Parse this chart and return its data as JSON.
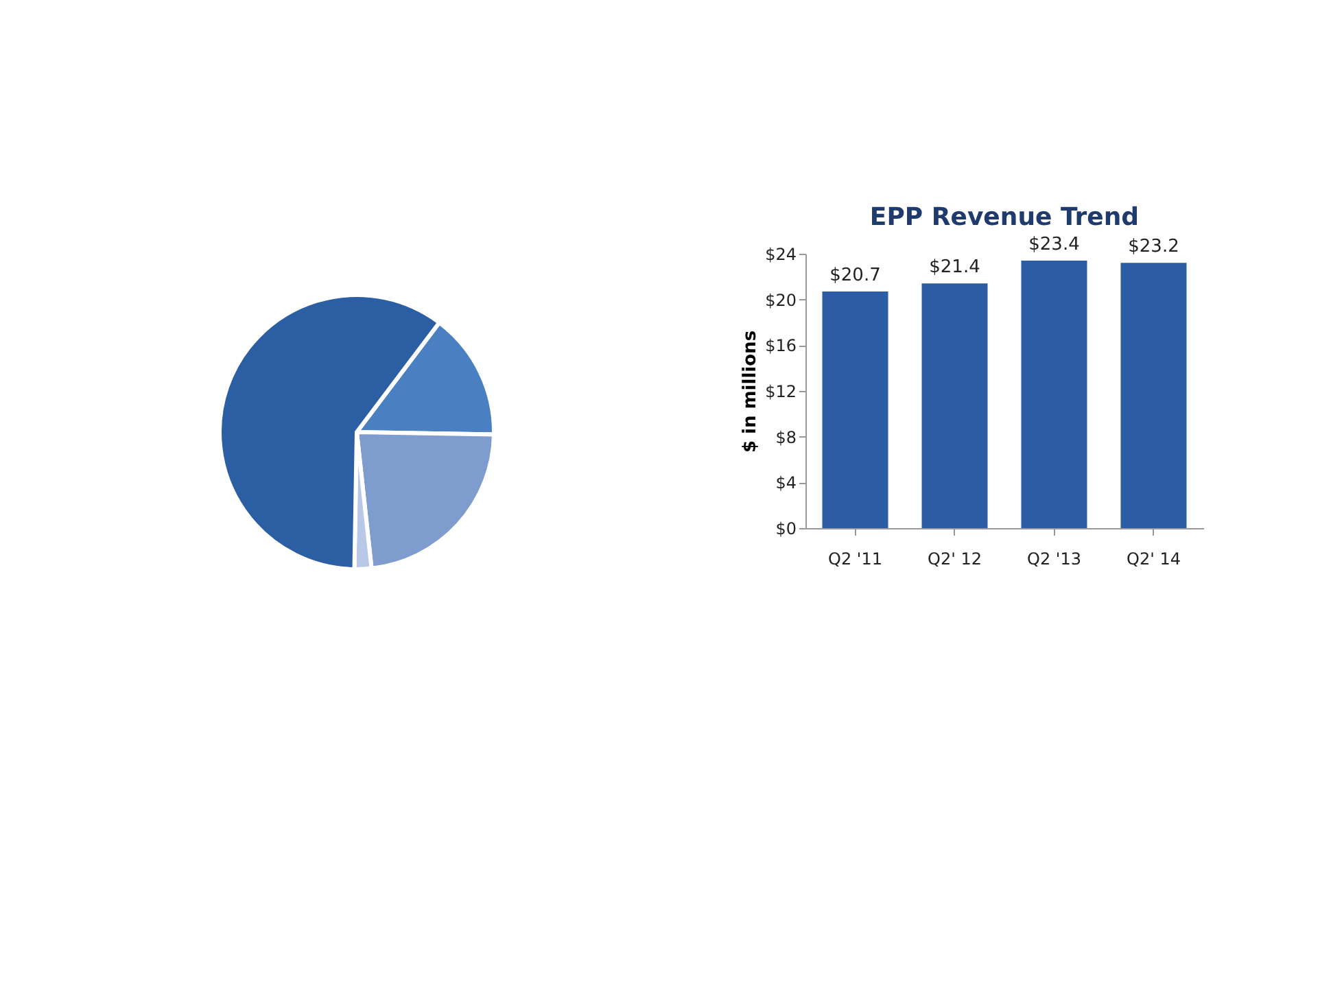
{
  "chart_data": [
    {
      "type": "pie",
      "categories": [
        null,
        null,
        null,
        null
      ],
      "values": [
        15,
        23,
        2,
        60
      ],
      "colors": [
        "#4a7fc1",
        "#7f9ccf",
        "#b9c8e6",
        "#2c5ea4"
      ]
    },
    {
      "type": "bar",
      "title": "EPP Revenue Trend",
      "ylabel": "$ in millions",
      "categories": [
        "Q2 '11",
        "Q2' 12",
        "Q2 '13",
        "Q2' 14"
      ],
      "values": [
        20.7,
        21.4,
        23.4,
        23.2
      ],
      "color": "#2c5ca4",
      "value_labels": [
        "$20.7",
        "$21.4",
        "$23.4",
        "$23.2"
      ],
      "ylim": [
        0,
        24
      ],
      "yticks": [
        {
          "value": 0,
          "label": "$0"
        },
        {
          "value": 4,
          "label": "$4"
        },
        {
          "value": 8,
          "label": "$8"
        },
        {
          "value": 12,
          "label": "$12"
        },
        {
          "value": 16,
          "label": "$16"
        },
        {
          "value": 20,
          "label": "$20"
        },
        {
          "value": 24,
          "label": "$24"
        }
      ]
    }
  ]
}
